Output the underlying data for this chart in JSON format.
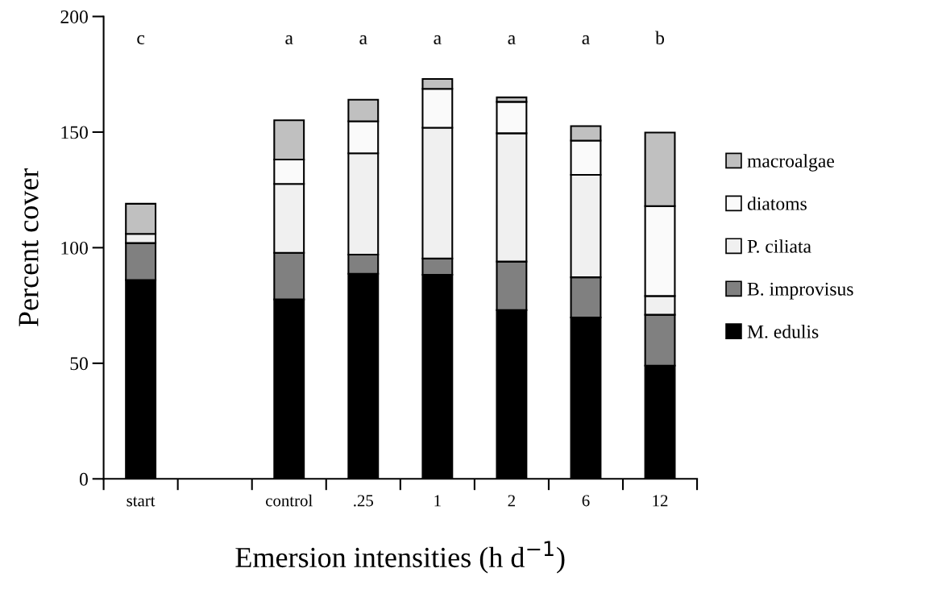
{
  "chart_data": {
    "type": "bar",
    "stacked": true,
    "xlabel": "Emersion intensities (h d$^{−1}$)",
    "ylabel": "Percent cover",
    "categories": [
      "start",
      null,
      "control",
      ".25",
      "1",
      "2",
      "6",
      "12"
    ],
    "series": [
      {
        "name": "M. edulis",
        "color": "#000000",
        "values": [
          86,
          null,
          77.6,
          88.7,
          88.3,
          73,
          69.8,
          49
        ]
      },
      {
        "name": "B. improvisus",
        "color": "#808080",
        "values": [
          16,
          null,
          20.2,
          8.3,
          7,
          21,
          17.4,
          22
        ]
      },
      {
        "name": "P. ciliata",
        "color": "#f0f0f0",
        "values": [
          4,
          null,
          29.8,
          43.8,
          56.6,
          55.5,
          44.3,
          8.1
        ]
      },
      {
        "name": "diatoms",
        "color": "#fafafa",
        "values": [
          null,
          null,
          10.5,
          13.9,
          16.8,
          13.6,
          14.8,
          38.9
        ]
      },
      {
        "name": "macroalgae",
        "color": "#c0c0c0",
        "values": [
          13,
          null,
          17,
          9.3,
          4.3,
          1.9,
          6.3,
          31.8
        ]
      }
    ],
    "ylim": [
      0,
      200
    ],
    "yticks": [
      0,
      50,
      100,
      150,
      200
    ],
    "grid": false,
    "legend": "right",
    "annotations": [
      "c",
      "a",
      "a",
      "a",
      "a",
      "a",
      "b"
    ]
  }
}
